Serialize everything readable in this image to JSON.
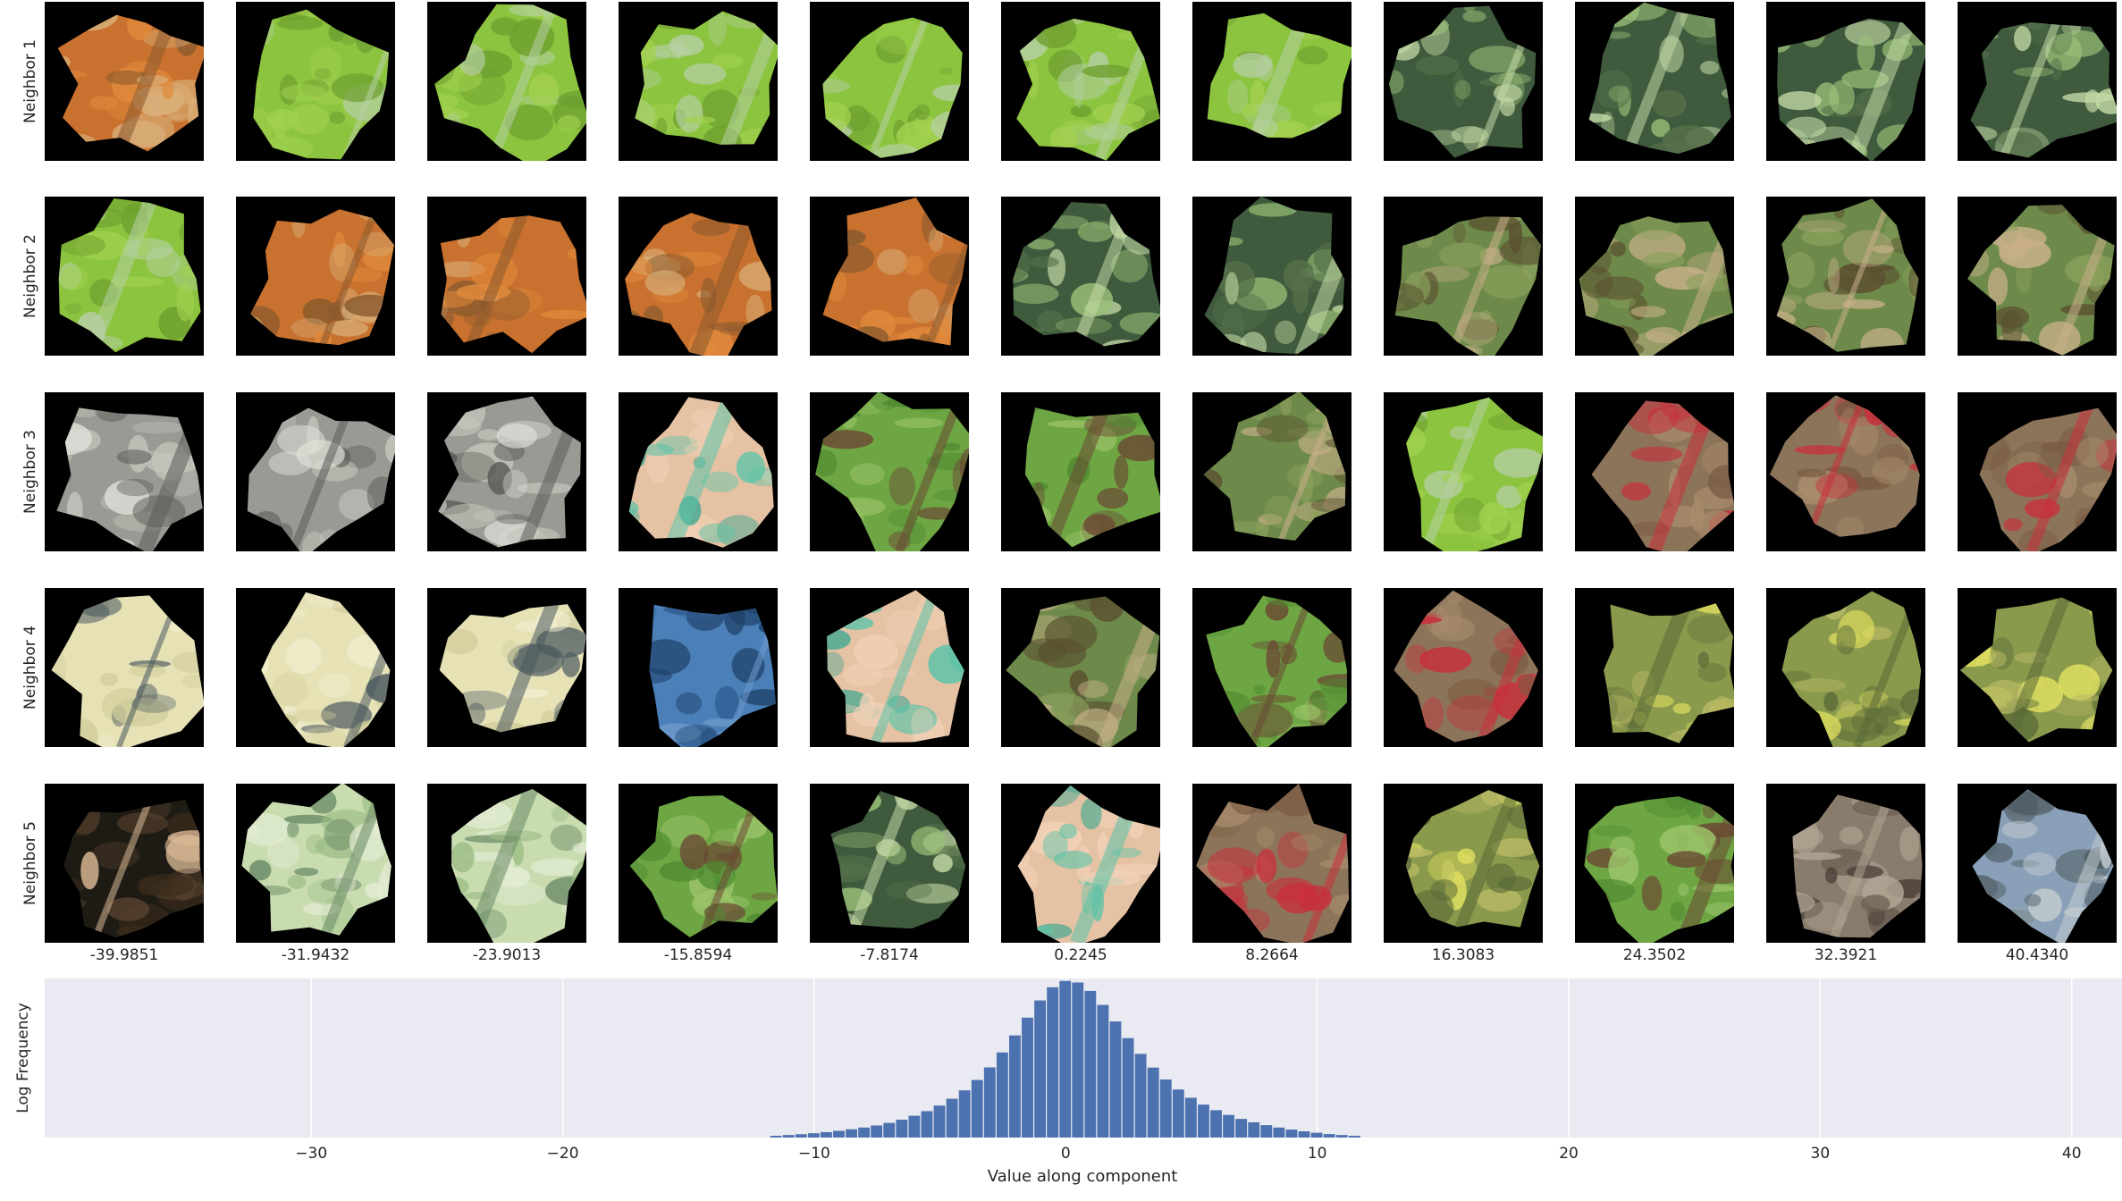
{
  "row_labels": [
    "Neighbor 1",
    "Neighbor 2",
    "Neighbor 3",
    "Neighbor 4",
    "Neighbor 5"
  ],
  "column_values": [
    "-39.9851",
    "-31.9432",
    "-23.9013",
    "-15.8594",
    "-7.8174",
    "0.2245",
    "8.2664",
    "16.3083",
    "24.3502",
    "32.3921",
    "40.4340"
  ],
  "tiles": [
    [
      "orange-leaf",
      "green-leaf",
      "green-leaf",
      "green-leaf",
      "green-leaf",
      "green-leaf",
      "green-leaf",
      "dark-green-stem",
      "dark-green-stem",
      "dark-green-stem",
      "dark-green-stem"
    ],
    [
      "green-leaf",
      "orange-leaf",
      "orange-leaf",
      "orange-leaf",
      "orange-leaf",
      "dark-green-stem",
      "dark-green-stem",
      "blurry-tan",
      "blurry-tan",
      "blurry-tan",
      "blurry-tan"
    ],
    [
      "gray-rock",
      "gray-rock",
      "gray-rock",
      "peach-teal",
      "grass-brown",
      "grass-brown",
      "blurry-tan",
      "green-leaf",
      "brown-red",
      "brown-red",
      "brown-red"
    ],
    [
      "cream-blob",
      "cream-blob",
      "cream-blob",
      "blue-water",
      "peach-teal",
      "blurry-tan",
      "grass-brown",
      "brown-red",
      "yellow-green-leaf",
      "yellow-green-leaf",
      "yellow-green-leaf"
    ],
    [
      "dark-scene",
      "pale-green-moss",
      "pale-green-moss",
      "grass-brown",
      "dark-green-stem",
      "peach-teal",
      "brown-red",
      "yellow-green-leaf",
      "grass-brown",
      "gray-gravel",
      "blue-gray-lichen"
    ]
  ],
  "tile_palettes": {
    "orange-leaf": [
      "#c9712e",
      "#e08a3c",
      "#8a5a2e",
      "#d9b07a"
    ],
    "green-leaf": [
      "#8cc43f",
      "#a3d14f",
      "#b6cfa5",
      "#6fa030"
    ],
    "dark-green-stem": [
      "#3f5a3c",
      "#55704a",
      "#c3d9a6",
      "#9abf78"
    ],
    "blurry-tan": [
      "#6e8a4a",
      "#8aa05c",
      "#c8b08a",
      "#5a5030"
    ],
    "gray-rock": [
      "#9a9a94",
      "#c4c4bc",
      "#5c5c58",
      "#e0e0da"
    ],
    "peach-teal": [
      "#e6c2a4",
      "#f0d2b8",
      "#5cc4a8",
      "#3aa690"
    ],
    "grass-brown": [
      "#6ea644",
      "#4e8a30",
      "#6b4a34",
      "#9cc46a"
    ],
    "brown-red": [
      "#8c745a",
      "#a88c6c",
      "#c8303c",
      "#7a5c44"
    ],
    "cream-blob": [
      "#e6e2b6",
      "#d0cc9a",
      "#4c5a60",
      "#f2eed0"
    ],
    "blue-water": [
      "#4a7fb8",
      "#2f5f94",
      "#6e9ccc",
      "#1e3f66"
    ],
    "yellow-green-leaf": [
      "#8a9a4c",
      "#b8b864",
      "#5a6a38",
      "#e0e060"
    ],
    "dark-scene": [
      "#1e1a14",
      "#3a2c1c",
      "#d8b894",
      "#5a4430"
    ],
    "pale-green-moss": [
      "#c8dcb0",
      "#9cbc84",
      "#6a8a66",
      "#e4ecd4"
    ],
    "gray-gravel": [
      "#8a7c6c",
      "#6c6052",
      "#b0a494",
      "#4a4038"
    ],
    "blue-gray-lichen": [
      "#8aa0b8",
      "#5c6c74",
      "#c4ccd0",
      "#3a4446"
    ]
  },
  "chart_data": {
    "type": "bar",
    "ylabel": "Log Frequency",
    "xlabel": "Value along component",
    "xlim": [
      -40.6,
      42.0
    ],
    "ylim": [
      0,
      1.0
    ],
    "y_scale": "log",
    "x_ticks": [
      -30,
      -20,
      -10,
      0,
      10,
      20,
      30,
      40
    ],
    "x_tick_labels": [
      "−30",
      "−20",
      "−10",
      "0",
      "10",
      "20",
      "30",
      "40"
    ],
    "grid": true,
    "background": "#eaeaf2",
    "bar_color": "#4c72b0",
    "bin_width": 0.5,
    "bins": [
      {
        "x": -11.5,
        "v": 0.011
      },
      {
        "x": -11.0,
        "v": 0.016
      },
      {
        "x": -10.5,
        "v": 0.021
      },
      {
        "x": -10.0,
        "v": 0.027
      },
      {
        "x": -9.5,
        "v": 0.034
      },
      {
        "x": -9.0,
        "v": 0.042
      },
      {
        "x": -8.5,
        "v": 0.052
      },
      {
        "x": -8.0,
        "v": 0.063
      },
      {
        "x": -7.5,
        "v": 0.076
      },
      {
        "x": -7.0,
        "v": 0.092
      },
      {
        "x": -6.5,
        "v": 0.112
      },
      {
        "x": -6.0,
        "v": 0.137
      },
      {
        "x": -5.5,
        "v": 0.166
      },
      {
        "x": -5.0,
        "v": 0.201
      },
      {
        "x": -4.5,
        "v": 0.244
      },
      {
        "x": -4.0,
        "v": 0.297
      },
      {
        "x": -3.5,
        "v": 0.362
      },
      {
        "x": -3.0,
        "v": 0.441
      },
      {
        "x": -2.5,
        "v": 0.535
      },
      {
        "x": -2.0,
        "v": 0.642
      },
      {
        "x": -1.5,
        "v": 0.754
      },
      {
        "x": -1.0,
        "v": 0.862
      },
      {
        "x": -0.5,
        "v": 0.945
      },
      {
        "x": 0.0,
        "v": 0.985
      },
      {
        "x": 0.5,
        "v": 0.975
      },
      {
        "x": 1.0,
        "v": 0.922
      },
      {
        "x": 1.5,
        "v": 0.834
      },
      {
        "x": 2.0,
        "v": 0.73
      },
      {
        "x": 2.5,
        "v": 0.625
      },
      {
        "x": 3.0,
        "v": 0.526
      },
      {
        "x": 3.5,
        "v": 0.44
      },
      {
        "x": 4.0,
        "v": 0.365
      },
      {
        "x": 4.5,
        "v": 0.302
      },
      {
        "x": 5.0,
        "v": 0.25
      },
      {
        "x": 5.5,
        "v": 0.207
      },
      {
        "x": 6.0,
        "v": 0.172
      },
      {
        "x": 6.5,
        "v": 0.142
      },
      {
        "x": 7.0,
        "v": 0.117
      },
      {
        "x": 7.5,
        "v": 0.096
      },
      {
        "x": 8.0,
        "v": 0.078
      },
      {
        "x": 8.5,
        "v": 0.063
      },
      {
        "x": 9.0,
        "v": 0.05
      },
      {
        "x": 9.5,
        "v": 0.039
      },
      {
        "x": 10.0,
        "v": 0.03
      },
      {
        "x": 10.5,
        "v": 0.022
      },
      {
        "x": 11.0,
        "v": 0.016
      },
      {
        "x": 11.5,
        "v": 0.011
      }
    ]
  }
}
